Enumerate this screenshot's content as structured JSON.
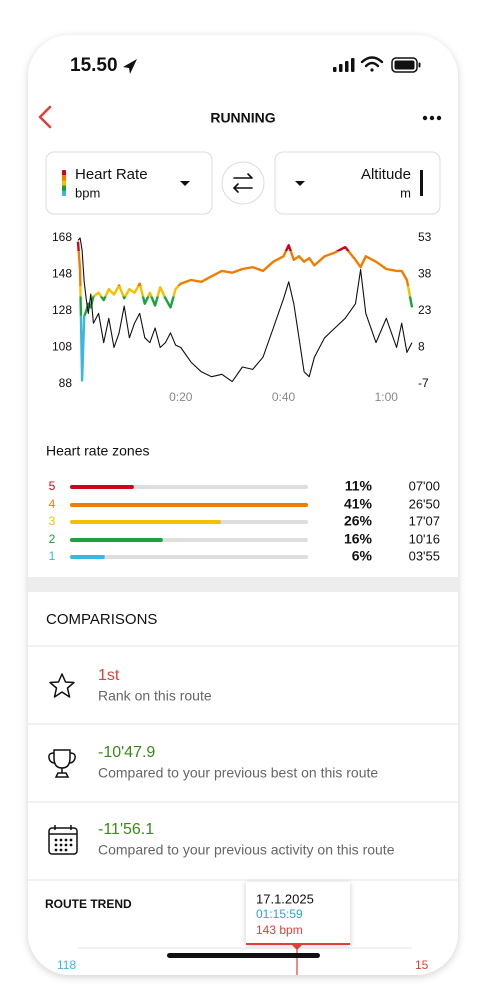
{
  "status_bar": {
    "time": "15.50"
  },
  "header": {
    "title": "RUNNING"
  },
  "chart_data": {
    "type": "line",
    "x": [
      0,
      0.4,
      0.8,
      1.2,
      1.6,
      2,
      2.5,
      3,
      4,
      5,
      6,
      7,
      8,
      9,
      10,
      11,
      12,
      13,
      14,
      15,
      16,
      17,
      18,
      19,
      20,
      22,
      24,
      26,
      28,
      30,
      32,
      34,
      36,
      38,
      40,
      41,
      42,
      43,
      44,
      45,
      46,
      48,
      50,
      52,
      54,
      55,
      56,
      58,
      60,
      62,
      63,
      64,
      65
    ],
    "xlim": [
      0,
      65
    ],
    "xticks": [
      {
        "value": 20,
        "label": "0:20"
      },
      {
        "value": 40,
        "label": "0:40"
      },
      {
        "value": 60,
        "label": "1:00"
      }
    ],
    "ylim": [
      88,
      168
    ],
    "yticks": [
      168,
      148,
      128,
      108,
      88
    ],
    "y2lim": [
      -7,
      53
    ],
    "y2ticks": [
      53,
      38,
      23,
      8,
      -7
    ],
    "series": [
      {
        "name": "Heart Rate",
        "unit": "bpm",
        "values": [
          166,
          150,
          90,
          125,
          128,
          132,
          130,
          136,
          138,
          134,
          140,
          137,
          142,
          135,
          140,
          138,
          143,
          132,
          138,
          131,
          141,
          135,
          130,
          140,
          143,
          145,
          144,
          147,
          150,
          149,
          151,
          152,
          150,
          155,
          158,
          164,
          156,
          158,
          155,
          157,
          153,
          158,
          160,
          163,
          156,
          152,
          158,
          155,
          151,
          150,
          150,
          145,
          130
        ]
      },
      {
        "name": "Altitude",
        "unit": "m",
        "color": "#111111",
        "axis": "y2",
        "values": [
          52,
          53,
          48,
          35,
          28,
          22,
          30,
          18,
          22,
          10,
          20,
          8,
          14,
          25,
          12,
          18,
          22,
          12,
          10,
          16,
          8,
          10,
          14,
          9,
          8,
          2,
          -2,
          -4,
          -3,
          -6,
          0,
          -1,
          4,
          16,
          28,
          35,
          26,
          12,
          -2,
          -4,
          4,
          12,
          16,
          20,
          26,
          40,
          22,
          10,
          20,
          8,
          18,
          6,
          10
        ]
      }
    ]
  },
  "zones": {
    "title": "Heart rate zones",
    "rows": [
      {
        "zone": 5,
        "color": "#d0021b",
        "percent": {
          "value": 11,
          "label": "11%"
        },
        "time": "07'00"
      },
      {
        "zone": 4,
        "color": "#f07d00",
        "percent": {
          "value": 41,
          "label": "41%"
        },
        "time": "26'50"
      },
      {
        "zone": 3,
        "color": "#f5c000",
        "percent": {
          "value": 26,
          "label": "26%"
        },
        "time": "17'07"
      },
      {
        "zone": 2,
        "color": "#1aa33c",
        "percent": {
          "value": 16,
          "label": "16%"
        },
        "time": "10'16"
      },
      {
        "zone": 1,
        "color": "#3cb6dd",
        "percent": {
          "value": 6,
          "label": "6%"
        },
        "time": "03'55"
      }
    ]
  },
  "comparisons": {
    "title": "COMPARISONS",
    "rows": [
      {
        "value": "1st",
        "description": "Rank on this route",
        "color": "#e0403a"
      },
      {
        "value": "-10'47.9",
        "description": "Compared to your previous best on this route",
        "color": "#3a8a17"
      },
      {
        "value": "-11'56.1",
        "description": "Compared to your previous activity on this route",
        "color": "#3a8a17"
      }
    ]
  },
  "route_trend": {
    "title": "ROUTE TREND",
    "tooltip": {
      "date": "17.1.2025",
      "time": "01:15:59",
      "value": "143 bpm"
    },
    "left_axis_label": "118",
    "right_axis_label": "15"
  }
}
